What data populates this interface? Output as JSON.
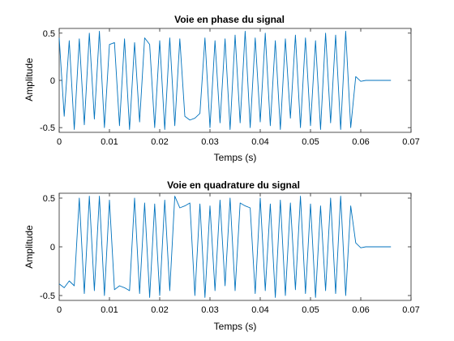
{
  "chart_data": [
    {
      "type": "line",
      "title": "Voie en phase du signal",
      "xlabel": "Temps (s)",
      "ylabel": "Amplitude",
      "xlim": [
        0,
        0.07
      ],
      "ylim": [
        -0.55,
        0.55
      ],
      "xticks": [
        "0",
        "0.01",
        "0.02",
        "0.03",
        "0.04",
        "0.05",
        "0.06",
        "0.07"
      ],
      "yticks": [
        "-0.5",
        "0",
        "0.5"
      ],
      "grid": false,
      "series": [
        {
          "color": "#0072BD",
          "x": [
            0,
            0.001,
            0.002,
            0.003,
            0.004,
            0.005,
            0.006,
            0.007,
            0.008,
            0.009,
            0.01,
            0.011,
            0.012,
            0.013,
            0.014,
            0.015,
            0.016,
            0.017,
            0.018,
            0.019,
            0.02,
            0.021,
            0.022,
            0.023,
            0.024,
            0.025,
            0.026,
            0.027,
            0.028,
            0.029,
            0.03,
            0.031,
            0.032,
            0.033,
            0.034,
            0.035,
            0.036,
            0.037,
            0.038,
            0.039,
            0.04,
            0.041,
            0.042,
            0.043,
            0.044,
            0.045,
            0.046,
            0.047,
            0.048,
            0.049,
            0.05,
            0.051,
            0.052,
            0.053,
            0.054,
            0.055,
            0.056,
            0.057,
            0.058,
            0.059,
            0.06,
            0.061,
            0.062,
            0.063,
            0.064,
            0.065,
            0.066
          ],
          "y": [
            0.45,
            -0.38,
            0.42,
            -0.52,
            0.44,
            -0.47,
            0.5,
            -0.41,
            0.52,
            -0.5,
            0.38,
            0.4,
            -0.48,
            0.44,
            -0.52,
            0.4,
            -0.44,
            0.45,
            0.38,
            -0.5,
            0.42,
            -0.52,
            0.45,
            -0.48,
            0.44,
            -0.38,
            -0.42,
            -0.4,
            -0.35,
            0.45,
            -0.5,
            0.42,
            -0.45,
            0.44,
            -0.52,
            0.48,
            -0.45,
            0.52,
            -0.5,
            0.45,
            -0.44,
            0.5,
            -0.48,
            0.42,
            -0.52,
            0.44,
            -0.4,
            0.48,
            -0.5,
            0.45,
            -0.48,
            0.42,
            -0.52,
            0.5,
            -0.45,
            0.48,
            -0.52,
            0.52,
            -0.5,
            0.04,
            -0.01,
            0,
            0,
            0,
            0,
            0,
            0
          ]
        }
      ]
    },
    {
      "type": "line",
      "title": "Voie en quadrature du signal",
      "xlabel": "Temps (s)",
      "ylabel": "Amplitude",
      "xlim": [
        0,
        0.07
      ],
      "ylim": [
        -0.55,
        0.55
      ],
      "xticks": [
        "0",
        "0.01",
        "0.02",
        "0.03",
        "0.04",
        "0.05",
        "0.06",
        "0.07"
      ],
      "yticks": [
        "-0.5",
        "0",
        "0.5"
      ],
      "grid": false,
      "series": [
        {
          "color": "#0072BD",
          "x": [
            0,
            0.001,
            0.002,
            0.003,
            0.004,
            0.005,
            0.006,
            0.007,
            0.008,
            0.009,
            0.01,
            0.011,
            0.012,
            0.013,
            0.014,
            0.015,
            0.016,
            0.017,
            0.018,
            0.019,
            0.02,
            0.021,
            0.022,
            0.023,
            0.024,
            0.025,
            0.026,
            0.027,
            0.028,
            0.029,
            0.03,
            0.031,
            0.032,
            0.033,
            0.034,
            0.035,
            0.036,
            0.037,
            0.038,
            0.039,
            0.04,
            0.041,
            0.042,
            0.043,
            0.044,
            0.045,
            0.046,
            0.047,
            0.048,
            0.049,
            0.05,
            0.051,
            0.052,
            0.053,
            0.054,
            0.055,
            0.056,
            0.057,
            0.058,
            0.059,
            0.06,
            0.061,
            0.062,
            0.063,
            0.064,
            0.065,
            0.066
          ],
          "y": [
            -0.38,
            -0.42,
            -0.35,
            -0.4,
            0.5,
            -0.48,
            0.52,
            -0.45,
            0.52,
            -0.5,
            0.48,
            -0.44,
            -0.4,
            -0.42,
            -0.45,
            0.5,
            -0.48,
            0.45,
            -0.52,
            0.44,
            -0.5,
            0.48,
            -0.45,
            0.52,
            0.4,
            0.42,
            0.45,
            -0.5,
            0.44,
            -0.52,
            0.42,
            -0.45,
            0.48,
            -0.4,
            0.5,
            -0.45,
            0.45,
            0.42,
            0.4,
            -0.48,
            0.5,
            -0.45,
            0.44,
            -0.52,
            0.48,
            -0.5,
            0.45,
            -0.44,
            0.52,
            -0.48,
            0.44,
            -0.52,
            0.42,
            -0.45,
            0.5,
            -0.48,
            0.52,
            -0.5,
            0.42,
            0.04,
            -0.01,
            0,
            0,
            0,
            0,
            0,
            0
          ]
        }
      ]
    }
  ]
}
